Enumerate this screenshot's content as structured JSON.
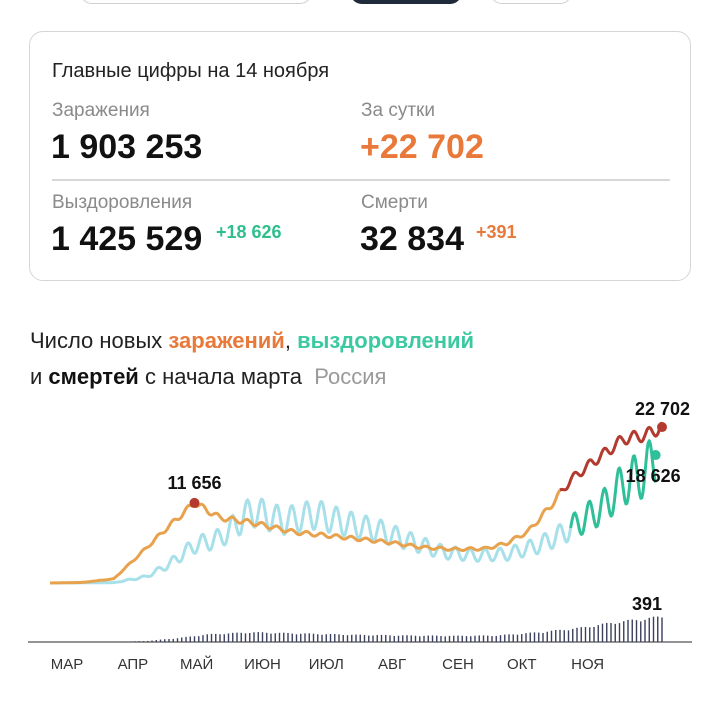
{
  "summary": {
    "title": "Главные цифры на 14 ноября",
    "infections_label": "Заражения",
    "infections_value": "1 903 253",
    "daily_label": "За сутки",
    "daily_value": "+22 702",
    "recoveries_label": "Выздоровления",
    "recoveries_value": "1 425 529",
    "recoveries_delta": "+18 626",
    "deaths_label": "Смерти",
    "deaths_value": "32 834",
    "deaths_delta": "+391"
  },
  "headline": {
    "p1": "Число новых ",
    "infections": "заражений",
    "comma": ", ",
    "recoveries": "выздоровлений",
    "p2": "и ",
    "deaths": "смертей",
    "p3": " с начала марта",
    "region": "Россия"
  },
  "colors": {
    "infections": "#e8a24d",
    "infections_recent": "#b33a2e",
    "recoveries": "#a8e0ea",
    "recoveries_recent": "#2fc09a",
    "deaths": "#3a3f5c",
    "axis": "#9a9a9a"
  },
  "chart_data": {
    "type": "line",
    "title": "Число новых заражений, выздоровлений и смертей с начала марта",
    "x_tick_labels": [
      "МАР",
      "АПР",
      "МАЙ",
      "ИЮН",
      "ИЮЛ",
      "АВГ",
      "СЕН",
      "ОКТ",
      "НОЯ"
    ],
    "x_range": [
      "2020-03-01",
      "2020-11-14"
    ],
    "series": [
      {
        "name": "заражения",
        "points": [
          [
            0,
            0
          ],
          [
            15,
            80
          ],
          [
            30,
            600
          ],
          [
            45,
            5000
          ],
          [
            55,
            8000
          ],
          [
            68,
            11656
          ],
          [
            80,
            9500
          ],
          [
            95,
            8800
          ],
          [
            115,
            7400
          ],
          [
            140,
            6600
          ],
          [
            160,
            5900
          ],
          [
            175,
            5200
          ],
          [
            190,
            4900
          ],
          [
            205,
            5000
          ],
          [
            215,
            5800
          ],
          [
            225,
            7500
          ],
          [
            235,
            11000
          ],
          [
            245,
            15000
          ],
          [
            255,
            17500
          ],
          [
            265,
            19800
          ],
          [
            270,
            21000
          ],
          [
            280,
            21500
          ],
          [
            288,
            22702
          ]
        ],
        "labels": [
          {
            "x": 68,
            "value": 11656,
            "text": "11 656"
          },
          {
            "x": 288,
            "value": 22702,
            "text": "22 702"
          }
        ]
      },
      {
        "name": "выздоровления",
        "points": [
          [
            0,
            0
          ],
          [
            30,
            50
          ],
          [
            45,
            900
          ],
          [
            55,
            2500
          ],
          [
            68,
            5500
          ],
          [
            80,
            6500
          ],
          [
            95,
            10500
          ],
          [
            110,
            9000
          ],
          [
            125,
            10000
          ],
          [
            140,
            8600
          ],
          [
            155,
            7600
          ],
          [
            170,
            6000
          ],
          [
            185,
            4500
          ],
          [
            200,
            4000
          ],
          [
            215,
            4200
          ],
          [
            230,
            5500
          ],
          [
            240,
            7000
          ],
          [
            250,
            9000
          ],
          [
            260,
            11000
          ],
          [
            270,
            14500
          ],
          [
            280,
            16000
          ],
          [
            285,
            18626
          ]
        ],
        "labels": [
          {
            "x": 285,
            "value": 18626,
            "text": "18 626"
          }
        ]
      },
      {
        "name": "смерти",
        "points": [
          [
            0,
            0
          ],
          [
            30,
            2
          ],
          [
            45,
            15
          ],
          [
            60,
            60
          ],
          [
            75,
            120
          ],
          [
            95,
            150
          ],
          [
            120,
            130
          ],
          [
            145,
            110
          ],
          [
            170,
            100
          ],
          [
            190,
            95
          ],
          [
            210,
            100
          ],
          [
            230,
            150
          ],
          [
            250,
            220
          ],
          [
            265,
            300
          ],
          [
            280,
            360
          ],
          [
            288,
            391
          ]
        ],
        "labels": [
          {
            "x": 288,
            "value": 391,
            "text": "391"
          }
        ]
      }
    ],
    "ylabel": "",
    "xlabel": ""
  }
}
